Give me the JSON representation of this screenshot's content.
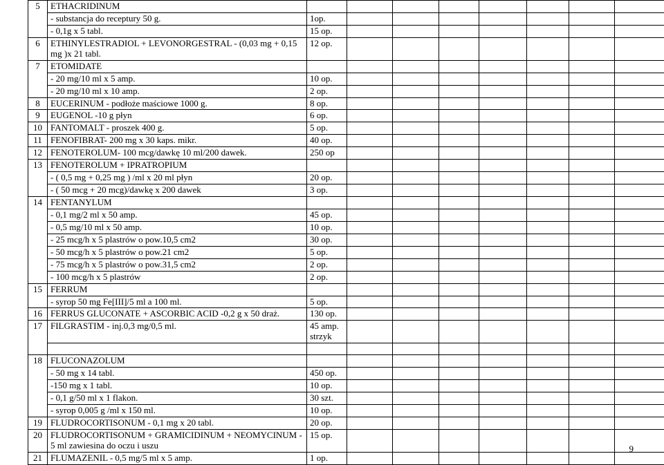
{
  "page_number": "9",
  "columns": {
    "idx": 0,
    "desc": 1,
    "qty": 2,
    "blanks": 7
  },
  "rows": [
    {
      "idx": "5",
      "idx_rowspan": 3,
      "desc": "ETHACRIDINUM",
      "qty": ""
    },
    {
      "desc": "- substancja do receptury 50 g.",
      "qty": "1op."
    },
    {
      "desc": "- 0,1g x 5 tabl.",
      "qty": "15 op."
    },
    {
      "idx": "6",
      "idx_rowspan": 1,
      "desc": "ETHINYLESTRADIOL + LEVONORGESTRAL - (0,03 mg + 0,15 mg )x 21 tabl.",
      "qty": "12 op."
    },
    {
      "idx": "7",
      "idx_rowspan": 3,
      "desc": "ETOMIDATE",
      "qty": ""
    },
    {
      "desc": "- 20 mg/10 ml x 5 amp.",
      "qty": "10 op."
    },
    {
      "desc": "- 20 mg/10 ml x 10 amp.",
      "qty": "2 op."
    },
    {
      "idx": "8",
      "idx_rowspan": 1,
      "desc": "EUCERINUM - podłoże maściowe 1000 g.",
      "qty": "8 op."
    },
    {
      "idx": "9",
      "idx_rowspan": 1,
      "desc": "EUGENOL -10 g płyn",
      "qty": "6 op."
    },
    {
      "idx": "10",
      "idx_rowspan": 1,
      "desc": "FANTOMALT - proszek 400 g.",
      "qty": "5 op."
    },
    {
      "idx": "11",
      "idx_rowspan": 1,
      "desc": "FENOFIBRAT- 200 mg x 30 kaps. mikr.",
      "qty": "40 op."
    },
    {
      "idx": "12",
      "idx_rowspan": 1,
      "desc": "FENOTEROLUM- 100 mcg/dawkę 10 ml/200 dawek.",
      "qty": "250 op"
    },
    {
      "idx": "13",
      "idx_rowspan": 3,
      "desc": "FENOTEROLUM + IPRATROPIUM",
      "qty": ""
    },
    {
      "desc": "- ( 0,5 mg + 0,25 mg ) /ml x 20 ml płyn",
      "qty": "20 op."
    },
    {
      "desc": "- ( 50 mcg + 20 mcg)/dawkę x 200 dawek",
      "qty": "3 op."
    },
    {
      "idx": "14",
      "idx_rowspan": 7,
      "desc": "FENTANYLUM",
      "qty": ""
    },
    {
      "desc": "- 0,1 mg/2 ml x 50 amp.",
      "qty": "45 op."
    },
    {
      "desc": "- 0,5 mg/10 ml x 50 amp.",
      "qty": "10 op."
    },
    {
      "desc": "- 25 mcg/h x 5 plastrów o pow.10,5 cm2",
      "qty": "30 op."
    },
    {
      "desc": "- 50 mcg/h x 5 plastrów o pow.21 cm2",
      "qty": "5 op."
    },
    {
      "desc": "- 75 mcg/h x 5 plastrów o pow.31,5 cm2",
      "qty": "2 op."
    },
    {
      "desc": "- 100 mcg/h x 5 plastrów",
      "qty": "2 op."
    },
    {
      "idx": "15",
      "idx_rowspan": 2,
      "desc": "FERRUM",
      "qty": ""
    },
    {
      "desc": "- syrop 50 mg Fe[III]/5 ml a 100 ml.",
      "qty": "5 op."
    },
    {
      "idx": "16",
      "idx_rowspan": 1,
      "desc": "FERRUS GLUCONATE + ASCORBIC ACID  -0,2 g x 50 draż.",
      "qty": "130 op."
    },
    {
      "idx": "17",
      "idx_rowspan": 2,
      "desc": "FILGRASTIM - inj.0,3 mg/0,5 ml.",
      "qty": "45 amp. strzyk"
    },
    {
      "desc": "",
      "qty": ""
    },
    {
      "idx": "18",
      "idx_rowspan": 5,
      "desc": "FLUCONAZOLUM",
      "qty": ""
    },
    {
      "desc": "- 50 mg x 14 tabl.",
      "qty": "450 op."
    },
    {
      "desc": "-150 mg x 1 tabl.",
      "qty": "10 op."
    },
    {
      "desc": "- 0,1 g/50 ml x 1 flakon.",
      "qty": "30 szt."
    },
    {
      "desc": "- syrop 0,005 g /ml x 150 ml.",
      "qty": "10 op."
    },
    {
      "idx": "19",
      "idx_rowspan": 1,
      "desc": "FLUDROCORTISONUM  - 0,1 mg x 20 tabl.",
      "qty": "20 op."
    },
    {
      "idx": "20",
      "idx_rowspan": 1,
      "desc": "FLUDROCORTISONUM + GRAMICIDINUM + NEOMYCINUM - 5 ml zawiesina do oczu i uszu",
      "qty": "15 op."
    },
    {
      "idx": "21",
      "idx_rowspan": 1,
      "desc": "FLUMAZENIL  - 0,5 mg/5 ml x 5 amp.",
      "qty": "1 op."
    }
  ]
}
